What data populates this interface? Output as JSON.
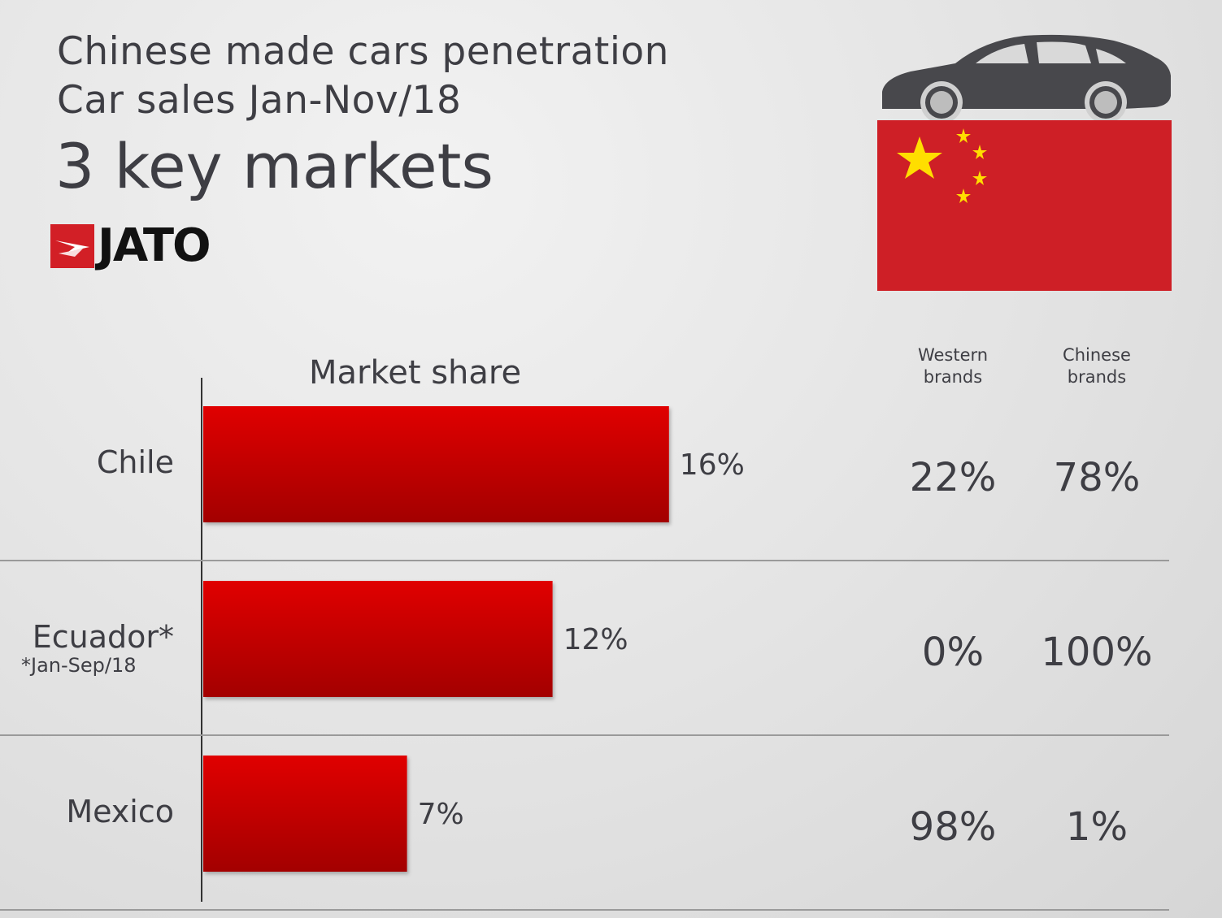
{
  "header": {
    "title_line1": "Chinese made cars penetration",
    "title_line2": "Car sales Jan-Nov/18",
    "title_line3": "3 key markets",
    "logo_text": "JATO"
  },
  "colors": {
    "bar_top": "#e00000",
    "bar_bottom": "#a30000",
    "flag_red": "#ce1f26",
    "flag_star": "#ffde00",
    "text": "#3e3e44"
  },
  "icons": [
    "car-icon",
    "china-flag-icon",
    "jato-logo-icon"
  ],
  "table": {
    "col_western": [
      "Western",
      "brands"
    ],
    "col_chinese": [
      "Chinese",
      "brands"
    ]
  },
  "chart_data": {
    "type": "bar",
    "orientation": "horizontal",
    "title": "Market share",
    "categories": [
      "Chile",
      "Ecuador*",
      "Mexico"
    ],
    "category_notes": [
      "",
      "*Jan-Sep/18",
      ""
    ],
    "values": [
      16,
      12,
      7
    ],
    "value_labels": [
      "16%",
      "12%",
      "7%"
    ],
    "unit": "%",
    "western_brands": [
      "22%",
      "0%",
      "98%"
    ],
    "chinese_brands": [
      "78%",
      "100%",
      "1%"
    ]
  }
}
